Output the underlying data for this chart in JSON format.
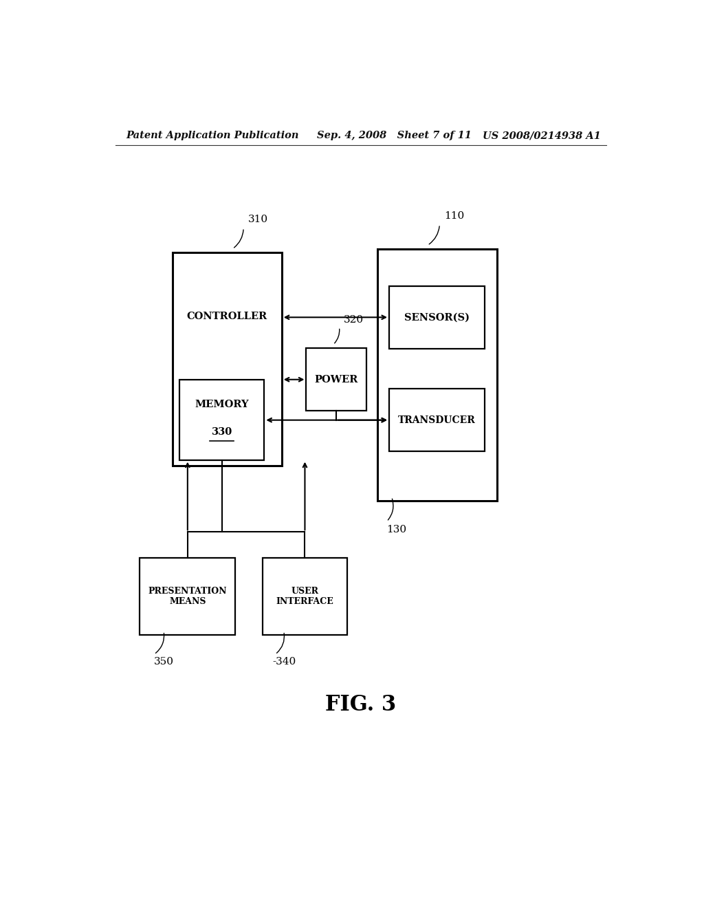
{
  "background_color": "#ffffff",
  "header_left": "Patent Application Publication",
  "header_mid": "Sep. 4, 2008   Sheet 7 of 11",
  "header_right": "US 2008/0214938 A1",
  "fig_label": "FIG. 3"
}
